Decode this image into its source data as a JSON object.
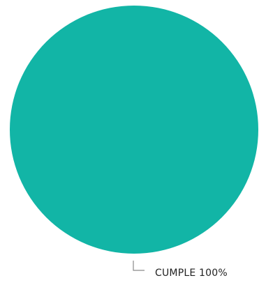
{
  "chart_data": {
    "type": "pie",
    "title": "",
    "slices": [
      {
        "label": "CUMPLE 100%",
        "value": 100,
        "color": "#12B5A6"
      }
    ],
    "legend": "none",
    "leader_line_color": "#8a8a8a"
  }
}
